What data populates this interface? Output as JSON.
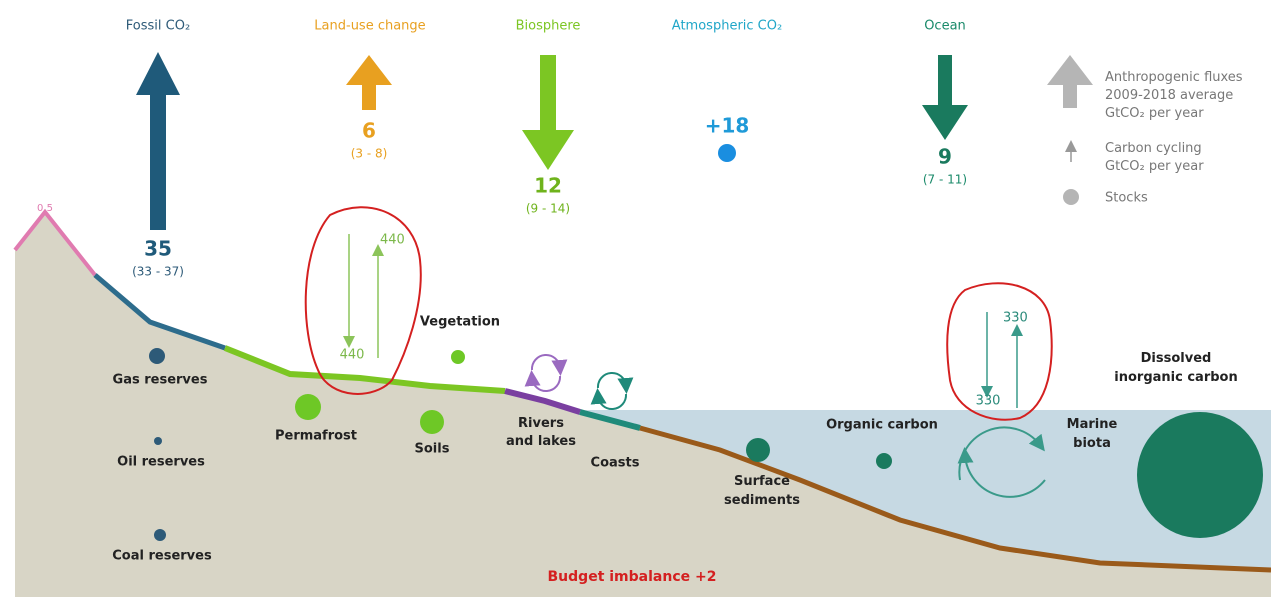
{
  "fluxes": [
    {
      "label": "Fossil CO₂",
      "value": "35",
      "range": "(33 - 37)"
    },
    {
      "label": "Land-use change",
      "value": "6",
      "range": "(3 - 8)"
    },
    {
      "label": "Biosphere",
      "value": "12",
      "range": "(9 - 14)"
    },
    {
      "label": "Atmospheric CO₂",
      "value": "+18"
    },
    {
      "label": "Ocean",
      "value": "9",
      "range": "(7 - 11)"
    }
  ],
  "legend": [
    {
      "lines": [
        "Anthropogenic fluxes",
        "2009-2018 average",
        "GtCO₂ per year"
      ]
    },
    {
      "lines": [
        "Carbon cycling",
        "GtCO₂ per year"
      ]
    },
    {
      "lines": [
        "Stocks"
      ]
    }
  ],
  "peak": "0.5",
  "cycling": {
    "land_down": "440",
    "land_up": "440",
    "ocean_up": "330",
    "ocean_down": "330"
  },
  "stocks": [
    {
      "lines": [
        "Gas reserves"
      ]
    },
    {
      "lines": [
        "Oil reserves"
      ]
    },
    {
      "lines": [
        "Coal reserves"
      ]
    },
    {
      "lines": [
        "Permafrost"
      ]
    },
    {
      "lines": [
        "Soils"
      ]
    },
    {
      "lines": [
        "Vegetation"
      ]
    },
    {
      "lines": [
        "Rivers",
        "and lakes"
      ]
    },
    {
      "lines": [
        "Coasts"
      ]
    },
    {
      "lines": [
        "Surface",
        "sediments"
      ]
    },
    {
      "lines": [
        "Organic carbon"
      ]
    },
    {
      "lines": [
        "Dissolved",
        "inorganic carbon"
      ]
    },
    {
      "lines": [
        "Marine",
        "biota"
      ]
    }
  ],
  "budget": "Budget imbalance +2"
}
